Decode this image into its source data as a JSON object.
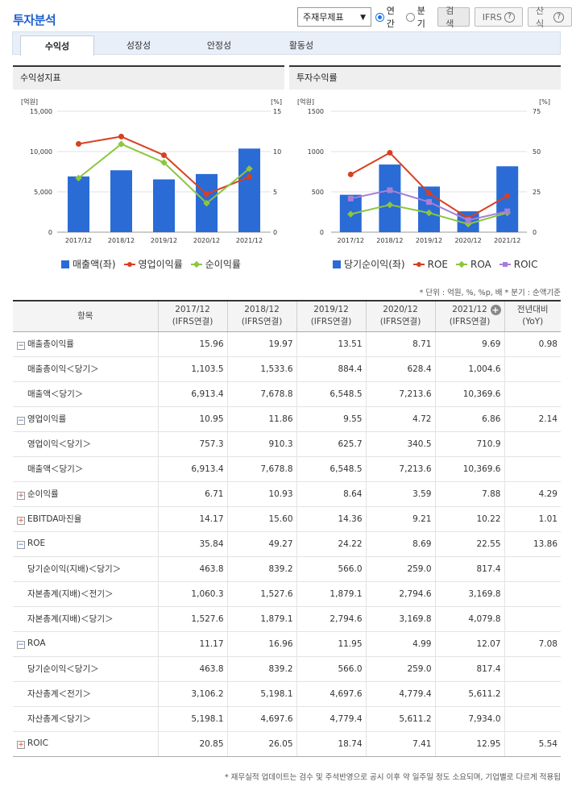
{
  "title": "투자분석",
  "toolbar": {
    "select_value": "주재무제표",
    "radio_annual": "연간",
    "radio_quarter": "분기",
    "search_label": "검색",
    "ifrs_label": "IFRS",
    "formula_label": "산식"
  },
  "tabs": [
    "수익성",
    "성장성",
    "안정성",
    "활동성"
  ],
  "chart_left": {
    "title": "수익성지표",
    "left_unit": "[억원]",
    "right_unit": "[%]",
    "left_ticks": [
      "15,000",
      "10,000",
      "5,000",
      "0"
    ],
    "right_ticks": [
      "15",
      "10",
      "5",
      "0"
    ],
    "legend": [
      "매출액(좌)",
      "영업이익률",
      "순이익률"
    ]
  },
  "chart_right": {
    "title": "투자수익률",
    "left_unit": "[억원]",
    "right_unit": "[%]",
    "left_ticks": [
      "1500",
      "1000",
      "500",
      "0"
    ],
    "right_ticks": [
      "75",
      "50",
      "25",
      "0"
    ],
    "legend": [
      "당기순이익(좌)",
      "ROE",
      "ROA",
      "ROIC"
    ]
  },
  "colors": {
    "bar": "#2a6bd6",
    "op_margin": "#d84020",
    "net_margin": "#8cc63f",
    "roic": "#a77fd6",
    "accent": "#1d5fd1"
  },
  "chart_data": [
    {
      "type": "bar",
      "title": "수익성지표",
      "categories": [
        "2017/12",
        "2018/12",
        "2019/12",
        "2020/12",
        "2021/12"
      ],
      "ylim": [
        0,
        15000
      ],
      "y2lim": [
        0,
        15
      ],
      "series": [
        {
          "name": "매출액(좌)",
          "type": "bar",
          "axis": "left",
          "values": [
            6913.4,
            7678.8,
            6548.5,
            7213.6,
            10369.6
          ]
        },
        {
          "name": "영업이익률",
          "type": "line",
          "axis": "right",
          "values": [
            10.95,
            11.86,
            9.55,
            4.72,
            6.86
          ]
        },
        {
          "name": "순이익률",
          "type": "line",
          "axis": "right",
          "values": [
            6.71,
            10.93,
            8.64,
            3.59,
            7.88
          ]
        }
      ]
    },
    {
      "type": "bar",
      "title": "투자수익률",
      "categories": [
        "2017/12",
        "2018/12",
        "2019/12",
        "2020/12",
        "2021/12"
      ],
      "ylim": [
        0,
        1500
      ],
      "y2lim": [
        0,
        75
      ],
      "series": [
        {
          "name": "당기순이익(좌)",
          "type": "bar",
          "axis": "left",
          "values": [
            463.8,
            839.2,
            566.0,
            259.0,
            817.4
          ]
        },
        {
          "name": "ROE",
          "type": "line",
          "axis": "right",
          "values": [
            35.84,
            49.27,
            24.22,
            8.69,
            22.55
          ]
        },
        {
          "name": "ROA",
          "type": "line",
          "axis": "right",
          "values": [
            11.17,
            16.96,
            11.95,
            4.99,
            12.07
          ]
        },
        {
          "name": "ROIC",
          "type": "line",
          "axis": "right",
          "values": [
            20.85,
            26.05,
            18.74,
            7.41,
            12.95
          ]
        }
      ]
    }
  ],
  "note": "* 단위 : 억원, %, %p, 배    * 분기 : 순액기준",
  "table": {
    "headers": [
      {
        "l1": "항목",
        "l2": ""
      },
      {
        "l1": "2017/12",
        "l2": "(IFRS연결)"
      },
      {
        "l1": "2018/12",
        "l2": "(IFRS연결)"
      },
      {
        "l1": "2019/12",
        "l2": "(IFRS연결)"
      },
      {
        "l1": "2020/12",
        "l2": "(IFRS연결)"
      },
      {
        "l1": "2021/12",
        "l2": "(IFRS연결)"
      },
      {
        "l1": "전년대비",
        "l2": "(YoY)"
      }
    ],
    "rows": [
      {
        "label": "매출총이익률",
        "toggle": "minus",
        "cells": [
          "15.96",
          "19.97",
          "13.51",
          "8.71",
          "9.69",
          "0.98"
        ]
      },
      {
        "label": "매출총이익＜당기＞",
        "toggle": "",
        "cells": [
          "1,103.5",
          "1,533.6",
          "884.4",
          "628.4",
          "1,004.6",
          ""
        ]
      },
      {
        "label": "매출액＜당기＞",
        "toggle": "",
        "cells": [
          "6,913.4",
          "7,678.8",
          "6,548.5",
          "7,213.6",
          "10,369.6",
          ""
        ]
      },
      {
        "label": "영업이익률",
        "toggle": "minus",
        "cells": [
          "10.95",
          "11.86",
          "9.55",
          "4.72",
          "6.86",
          "2.14"
        ]
      },
      {
        "label": "영업이익＜당기＞",
        "toggle": "",
        "cells": [
          "757.3",
          "910.3",
          "625.7",
          "340.5",
          "710.9",
          ""
        ]
      },
      {
        "label": "매출액＜당기＞",
        "toggle": "",
        "cells": [
          "6,913.4",
          "7,678.8",
          "6,548.5",
          "7,213.6",
          "10,369.6",
          ""
        ]
      },
      {
        "label": "순이익률",
        "toggle": "plus",
        "cells": [
          "6.71",
          "10.93",
          "8.64",
          "3.59",
          "7.88",
          "4.29"
        ]
      },
      {
        "label": "EBITDA마진율",
        "toggle": "plus",
        "cells": [
          "14.17",
          "15.60",
          "14.36",
          "9.21",
          "10.22",
          "1.01"
        ]
      },
      {
        "label": "ROE",
        "toggle": "minus",
        "cells": [
          "35.84",
          "49.27",
          "24.22",
          "8.69",
          "22.55",
          "13.86"
        ]
      },
      {
        "label": "당기순이익(지배)＜당기＞",
        "toggle": "",
        "cells": [
          "463.8",
          "839.2",
          "566.0",
          "259.0",
          "817.4",
          ""
        ]
      },
      {
        "label": "자본총계(지배)＜전기＞",
        "toggle": "",
        "cells": [
          "1,060.3",
          "1,527.6",
          "1,879.1",
          "2,794.6",
          "3,169.8",
          ""
        ]
      },
      {
        "label": "자본총계(지배)＜당기＞",
        "toggle": "",
        "cells": [
          "1,527.6",
          "1,879.1",
          "2,794.6",
          "3,169.8",
          "4,079.8",
          ""
        ]
      },
      {
        "label": "ROA",
        "toggle": "minus",
        "cells": [
          "11.17",
          "16.96",
          "11.95",
          "4.99",
          "12.07",
          "7.08"
        ]
      },
      {
        "label": "당기순이익＜당기＞",
        "toggle": "",
        "cells": [
          "463.8",
          "839.2",
          "566.0",
          "259.0",
          "817.4",
          ""
        ]
      },
      {
        "label": "자산총계＜전기＞",
        "toggle": "",
        "cells": [
          "3,106.2",
          "5,198.1",
          "4,697.6",
          "4,779.4",
          "5,611.2",
          ""
        ]
      },
      {
        "label": "자산총계＜당기＞",
        "toggle": "",
        "cells": [
          "5,198.1",
          "4,697.6",
          "4,779.4",
          "5,611.2",
          "7,934.0",
          ""
        ]
      },
      {
        "label": "ROIC",
        "toggle": "plus",
        "cells": [
          "20.85",
          "26.05",
          "18.74",
          "7.41",
          "12.95",
          "5.54"
        ]
      }
    ]
  },
  "footer": "* 재무실적 업데이트는 검수 및 주석반영으로 공시 이후 약 일주일 정도 소요되며, 기업별로 다르게 적용됩"
}
